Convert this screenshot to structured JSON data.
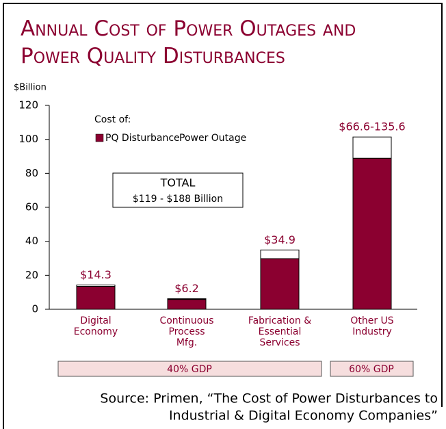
{
  "chart_data": {
    "type": "stacked_bar",
    "title": "Annual Cost of Power Outages and Power Quality Disturbances",
    "y_label": "$Billion",
    "categories": [
      "Digital Economy",
      "Continuous Process Mfg.",
      "Fabrication & Essential Services",
      "Other US Industry"
    ],
    "series": [
      {
        "name": "PQ Disturbance",
        "color": "#8b0030",
        "values": [
          13.5,
          5.8,
          29.8,
          88.9
        ]
      },
      {
        "name": "Power Outage",
        "color": "#ffffff",
        "values": [
          0.8,
          0.4,
          5.1,
          12.5
        ]
      }
    ],
    "bar_labels": [
      "$14.3",
      "$6.2",
      "$34.9",
      "$66.6-135.6"
    ],
    "legend_title": "Cost of:",
    "total_box": [
      "TOTAL",
      "$119 - $188 Billion"
    ],
    "gdp_groups": [
      "40% GDP",
      "60% GDP"
    ],
    "source": [
      "Source: Primen, “The Cost of Power Disturbances to",
      "Industrial & Digital Economy Companies”"
    ],
    "ylim": [
      0,
      120
    ],
    "yticks": [
      0,
      20,
      40,
      60,
      80,
      100,
      120
    ]
  }
}
